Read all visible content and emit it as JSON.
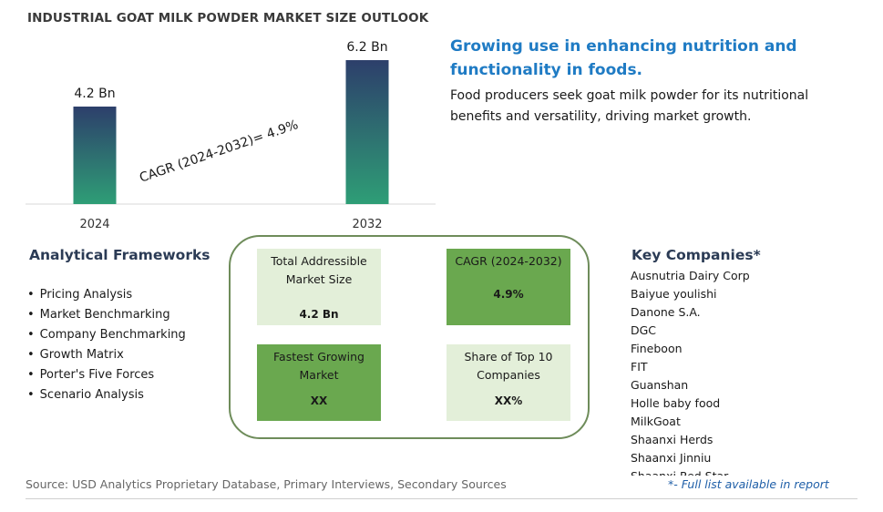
{
  "title": "INDUSTRIAL GOAT MILK POWDER MARKET SIZE OUTLOOK",
  "chart_data": {
    "type": "bar",
    "categories": [
      "2024",
      "2032"
    ],
    "values": [
      4.2,
      6.2
    ],
    "value_labels": [
      "4.2 Bn",
      "6.2 Bn"
    ],
    "unit": "Bn",
    "ylim": [
      0,
      6.2
    ],
    "annotation": "CAGR (2024-2032)=  4.9%",
    "grid": false,
    "bar_gradient": [
      "#2e9e76",
      "#2d3f6b"
    ]
  },
  "headline": "Growing use in enhancing nutrition and functionality in foods.",
  "description": "Food producers seek goat milk powder for its nutritional benefits and versatility, driving market growth.",
  "analytical_frameworks": {
    "title": "Analytical Frameworks",
    "items": [
      "Pricing Analysis",
      "Market Benchmarking",
      "Company Benchmarking",
      "Growth Matrix",
      "Porter's Five Forces",
      "Scenario Analysis"
    ]
  },
  "metrics": {
    "tam": {
      "label": "Total Addressible Market Size",
      "value": "4.2 Bn"
    },
    "cagr": {
      "label": "CAGR (2024-2032)",
      "value": "4.9%"
    },
    "fastest": {
      "label": "Fastest Growing Market",
      "value": "XX"
    },
    "share": {
      "label": "Share of Top 10 Companies",
      "value": "XX%"
    }
  },
  "key_companies": {
    "title": "Key Companies*",
    "items": [
      "Ausnutria Dairy Corp",
      "Baiyue youlishi",
      "Danone S.A.",
      "DGC",
      "Fineboon",
      "FIT",
      "Guanshan",
      "Holle baby food",
      "MilkGoat",
      "Shaanxi Herds",
      "Shaanxi Jinniu",
      "Shaanxi Red Star"
    ]
  },
  "source": "Source: USD Analytics Proprietary Database, Primary Interviews, Secondary Sources",
  "note": "*- Full list available in report",
  "colors": {
    "accent": "#1f7bc4",
    "heading": "#2b3b55",
    "box_light": "#e3efd9",
    "box_dark": "#6aa84f",
    "frame": "#6e8c5a"
  }
}
